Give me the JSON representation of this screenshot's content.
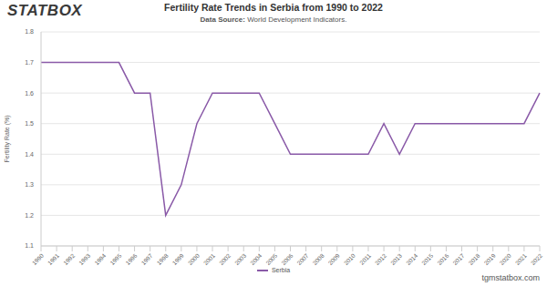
{
  "logo": "STATBOX",
  "website": "tgmstatbox.com",
  "chart_data": {
    "type": "line",
    "title": "Fertility Rate Trends in Serbia from 1990 to 2022",
    "subtitle": "Data Source: World Development Indicators.",
    "y_label": "Fertility Rate (%)",
    "categories": [
      "1990",
      "1991",
      "1992",
      "1993",
      "1994",
      "1995",
      "1996",
      "1997",
      "1998",
      "1999",
      "2000",
      "2001",
      "2002",
      "2003",
      "2004",
      "2005",
      "2006",
      "2007",
      "2008",
      "2009",
      "2010",
      "2011",
      "2012",
      "2013",
      "2014",
      "2015",
      "2016",
      "2017",
      "2018",
      "2019",
      "2020",
      "2021",
      "2022"
    ],
    "series": [
      {
        "name": "Serbia",
        "color": "#8a5aa8",
        "marker": "none",
        "line_style": "solid",
        "values": [
          1.7,
          1.7,
          1.7,
          1.7,
          1.7,
          1.7,
          1.6,
          1.6,
          1.2,
          1.3,
          1.5,
          1.6,
          1.6,
          1.6,
          1.6,
          1.5,
          1.4,
          1.4,
          1.4,
          1.4,
          1.4,
          1.4,
          1.5,
          1.4,
          1.5,
          1.5,
          1.5,
          1.5,
          1.5,
          1.5,
          1.5,
          1.5,
          1.6
        ]
      }
    ],
    "ylim": [
      1.1,
      1.8
    ],
    "yticks": [
      1.1,
      1.2,
      1.3,
      1.4,
      1.5,
      1.6,
      1.7,
      1.8
    ],
    "grid": true,
    "legend": "bottom"
  }
}
